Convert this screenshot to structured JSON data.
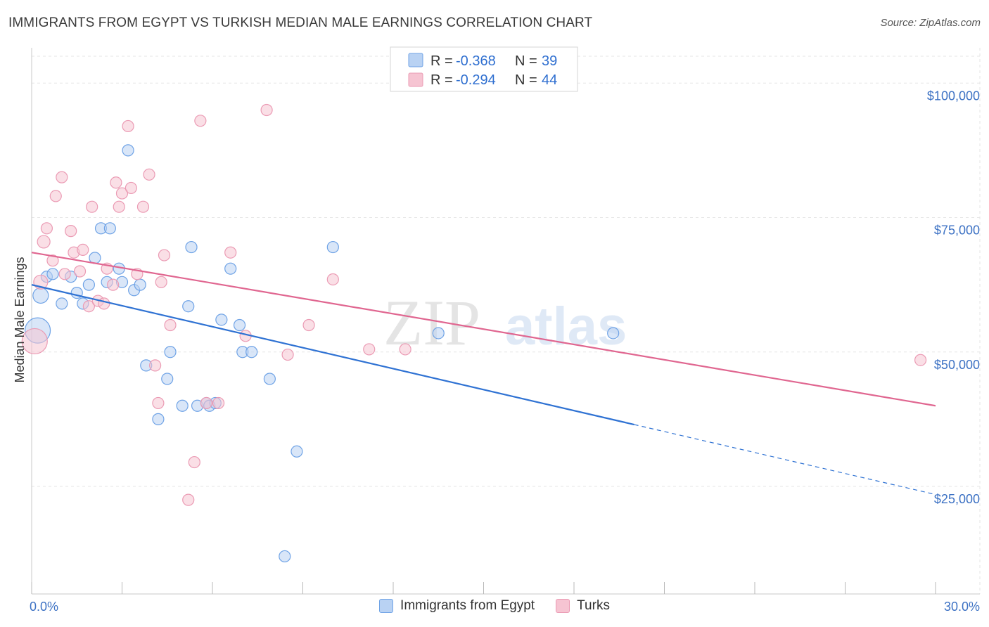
{
  "title": "IMMIGRANTS FROM EGYPT VS TURKISH MEDIAN MALE EARNINGS CORRELATION CHART",
  "source": "Source: ZipAtlas.com",
  "watermark": {
    "zip": "ZIP",
    "atlas": "atlas"
  },
  "chart_data": {
    "type": "scatter",
    "title": "IMMIGRANTS FROM EGYPT VS TURKISH MEDIAN MALE EARNINGS CORRELATION CHART",
    "xlabel": "",
    "ylabel": "Median Male Earnings",
    "xlim": [
      0,
      30
    ],
    "ylim": [
      5000,
      105000
    ],
    "x_tick_labels": {
      "left": "0.0%",
      "right": "30.0%"
    },
    "y_ticks": [
      {
        "value": 100000,
        "label": "$100,000"
      },
      {
        "value": 75000,
        "label": "$75,000"
      },
      {
        "value": 50000,
        "label": "$50,000"
      },
      {
        "value": 25000,
        "label": "$25,000"
      }
    ],
    "grid": true,
    "legend_inset": {
      "placement": "top-center",
      "rows": [
        {
          "series": "Immigrants from Egypt",
          "r_label": "R = ",
          "r_value": "-0.368",
          "n_label": "N = ",
          "n_value": "39"
        },
        {
          "series": "Turks",
          "r_label": "R = ",
          "r_value": "-0.294",
          "n_label": "N = ",
          "n_value": "44"
        }
      ]
    },
    "series": [
      {
        "name": "Immigrants from Egypt",
        "color": "#6fa3e6",
        "fill": "#b9d2f3",
        "line_color": "#2f72d3",
        "trend": {
          "x_start": 0,
          "y_start": 62500,
          "x_solid_end": 20,
          "y_solid_end": 36500,
          "x_end": 30,
          "y_end": 23500
        },
        "points": [
          [
            0.2,
            54000,
            18
          ],
          [
            0.3,
            60500,
            11
          ],
          [
            0.5,
            64000,
            8
          ],
          [
            0.7,
            64500,
            8
          ],
          [
            1.0,
            59000,
            8
          ],
          [
            1.3,
            64000,
            8
          ],
          [
            1.5,
            61000,
            8
          ],
          [
            1.7,
            59000,
            8
          ],
          [
            1.9,
            62500,
            8
          ],
          [
            2.1,
            67500,
            8
          ],
          [
            2.3,
            73000,
            8
          ],
          [
            2.5,
            63000,
            8
          ],
          [
            2.6,
            73000,
            8
          ],
          [
            2.9,
            65500,
            8
          ],
          [
            3.0,
            63000,
            8
          ],
          [
            3.2,
            87500,
            8
          ],
          [
            3.4,
            61500,
            8
          ],
          [
            3.6,
            62500,
            8
          ],
          [
            3.8,
            47500,
            8
          ],
          [
            4.2,
            37500,
            8
          ],
          [
            4.5,
            45000,
            8
          ],
          [
            4.6,
            50000,
            8
          ],
          [
            5.0,
            40000,
            8
          ],
          [
            5.2,
            58500,
            8
          ],
          [
            5.3,
            69500,
            8
          ],
          [
            5.5,
            40000,
            8
          ],
          [
            5.8,
            40500,
            8
          ],
          [
            5.9,
            40000,
            8
          ],
          [
            6.1,
            40500,
            8
          ],
          [
            6.3,
            56000,
            8
          ],
          [
            6.6,
            65500,
            8
          ],
          [
            6.9,
            55000,
            8
          ],
          [
            7.0,
            50000,
            8
          ],
          [
            7.3,
            50000,
            8
          ],
          [
            7.9,
            45000,
            8
          ],
          [
            8.4,
            12000,
            8
          ],
          [
            8.8,
            31500,
            8
          ],
          [
            10.0,
            69500,
            8
          ],
          [
            13.5,
            53500,
            8
          ],
          [
            19.3,
            53500,
            8
          ]
        ]
      },
      {
        "name": "Turks",
        "color": "#eb9bb4",
        "fill": "#f6c4d2",
        "line_color": "#e06690",
        "trend": {
          "x_start": 0,
          "y_start": 68500,
          "x_end": 30,
          "y_end": 40000
        },
        "points": [
          [
            0.1,
            52000,
            18
          ],
          [
            0.3,
            63000,
            10
          ],
          [
            0.4,
            70500,
            9
          ],
          [
            0.5,
            73000,
            8
          ],
          [
            0.7,
            67000,
            8
          ],
          [
            0.8,
            79000,
            8
          ],
          [
            1.0,
            82500,
            8
          ],
          [
            1.1,
            64500,
            8
          ],
          [
            1.3,
            72500,
            8
          ],
          [
            1.4,
            68500,
            8
          ],
          [
            1.6,
            65000,
            8
          ],
          [
            1.7,
            69000,
            8
          ],
          [
            1.9,
            58500,
            8
          ],
          [
            2.0,
            77000,
            8
          ],
          [
            2.2,
            59500,
            8
          ],
          [
            2.4,
            59000,
            8
          ],
          [
            2.5,
            65500,
            8
          ],
          [
            2.7,
            62500,
            8
          ],
          [
            2.8,
            81500,
            8
          ],
          [
            2.9,
            77000,
            8
          ],
          [
            3.0,
            79500,
            8
          ],
          [
            3.2,
            92000,
            8
          ],
          [
            3.3,
            80500,
            8
          ],
          [
            3.5,
            64500,
            8
          ],
          [
            3.7,
            77000,
            8
          ],
          [
            3.9,
            83000,
            8
          ],
          [
            4.1,
            47500,
            8
          ],
          [
            4.2,
            40500,
            8
          ],
          [
            4.3,
            63000,
            8
          ],
          [
            4.4,
            68000,
            8
          ],
          [
            4.6,
            55000,
            8
          ],
          [
            5.2,
            22500,
            8
          ],
          [
            5.4,
            29500,
            8
          ],
          [
            5.6,
            93000,
            8
          ],
          [
            5.8,
            40500,
            8
          ],
          [
            6.2,
            40500,
            8
          ],
          [
            6.6,
            68500,
            8
          ],
          [
            7.1,
            53000,
            8
          ],
          [
            7.8,
            95000,
            8
          ],
          [
            8.5,
            49500,
            8
          ],
          [
            9.2,
            55000,
            8
          ],
          [
            10.0,
            63500,
            8
          ],
          [
            11.2,
            50500,
            8
          ],
          [
            12.4,
            50500,
            8
          ],
          [
            29.5,
            48500,
            8
          ]
        ]
      }
    ]
  },
  "bottom_legend": [
    {
      "label": "Immigrants from Egypt",
      "color": "#6fa3e6",
      "fill": "#b9d2f3"
    },
    {
      "label": "Turks",
      "color": "#eb9bb4",
      "fill": "#f6c4d2"
    }
  ]
}
